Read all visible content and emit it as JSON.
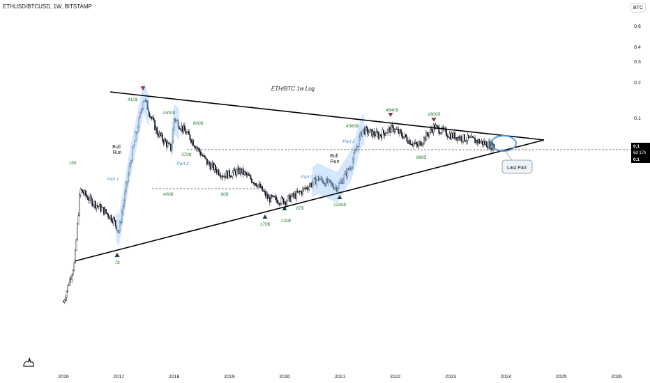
{
  "symbol_line": "ETHUSD/BTCUSD, 1W, BITSTAMP",
  "currency_button": "BTC",
  "price_tags": {
    "top": "0.1",
    "middle": "6d 17h",
    "bottom": "0.1"
  },
  "logo_icon": "tradingview-logo-icon",
  "colors": {
    "up_candle": "#ffffff",
    "down_candle": "#131722",
    "trendline": "#000000",
    "highlight": "#9ec9ff",
    "green_label": "#2e7d32",
    "blue_label": "#4a90d9",
    "bottom_marker": "#1d3d4a",
    "top_marker": "#8b3a3a",
    "circle": "#5b9bd5"
  },
  "chart_data": {
    "type": "candlestick",
    "title": "ETH/BTC 1w Log",
    "y_scale": "log",
    "y_ticks": [
      "0.6",
      "0.4",
      "0.3",
      "0.2",
      "0.1"
    ],
    "x_ticks": [
      "2016",
      "2017",
      "2018",
      "2019",
      "2020",
      "2021",
      "2022",
      "2023",
      "2024",
      "2025",
      "2026"
    ],
    "price_labels": [
      "15$",
      "7$",
      "410$",
      "1400$",
      "800$",
      "370$",
      "400$",
      "80$",
      "170$",
      "130$",
      "87$",
      "1200$",
      "4380$",
      "4840$",
      "890$",
      "1800$"
    ],
    "annotations": [
      "Bull Run",
      "Bull Run",
      "Part 1",
      "Part 2",
      "Part 1",
      "Part 2",
      "Last Part"
    ],
    "pattern": "symmetrical triangle",
    "close_series": [
      {
        "x": 2016.0,
        "y": 0.0028
      },
      {
        "x": 2016.2,
        "y": 0.006
      },
      {
        "x": 2016.3,
        "y": 0.025
      },
      {
        "x": 2016.5,
        "y": 0.02
      },
      {
        "x": 2016.7,
        "y": 0.017
      },
      {
        "x": 2016.9,
        "y": 0.014
      },
      {
        "x": 2017.0,
        "y": 0.011
      },
      {
        "x": 2017.2,
        "y": 0.04
      },
      {
        "x": 2017.45,
        "y": 0.15
      },
      {
        "x": 2017.7,
        "y": 0.075
      },
      {
        "x": 2017.95,
        "y": 0.055
      },
      {
        "x": 2018.0,
        "y": 0.1
      },
      {
        "x": 2018.3,
        "y": 0.068
      },
      {
        "x": 2018.6,
        "y": 0.042
      },
      {
        "x": 2018.9,
        "y": 0.033
      },
      {
        "x": 2019.2,
        "y": 0.036
      },
      {
        "x": 2019.5,
        "y": 0.028
      },
      {
        "x": 2019.7,
        "y": 0.021
      },
      {
        "x": 2020.0,
        "y": 0.02
      },
      {
        "x": 2020.3,
        "y": 0.024
      },
      {
        "x": 2020.6,
        "y": 0.031
      },
      {
        "x": 2020.95,
        "y": 0.026
      },
      {
        "x": 2021.2,
        "y": 0.04
      },
      {
        "x": 2021.4,
        "y": 0.08
      },
      {
        "x": 2021.7,
        "y": 0.072
      },
      {
        "x": 2021.95,
        "y": 0.083
      },
      {
        "x": 2022.4,
        "y": 0.058
      },
      {
        "x": 2022.7,
        "y": 0.085
      },
      {
        "x": 2023.0,
        "y": 0.072
      },
      {
        "x": 2023.5,
        "y": 0.064
      },
      {
        "x": 2023.8,
        "y": 0.058
      }
    ]
  }
}
